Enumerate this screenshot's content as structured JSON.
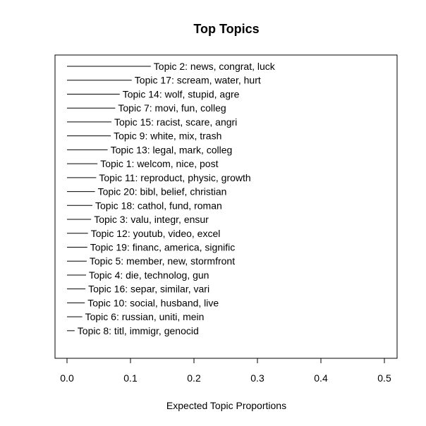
{
  "chart_data": {
    "type": "bar",
    "title": "Top Topics",
    "xlabel": "Expected Topic Proportions",
    "ylabel": "",
    "xlim": [
      0.0,
      0.5
    ],
    "x_ticks": [
      "0.0",
      "0.1",
      "0.2",
      "0.3",
      "0.4",
      "0.5"
    ],
    "grid": false,
    "orientation": "horizontal",
    "categories": [
      "Topic 2: news, congrat, luck",
      "Topic 17: scream, water, hurt",
      "Topic 14: wolf, stupid, agre",
      "Topic 7: movi, fun, colleg",
      "Topic 15: racist, scare, angri",
      "Topic 9: white, mix, trash",
      "Topic 13: legal, mark, colleg",
      "Topic 1: welcom, nice, post",
      "Topic 11: reproduct, physic, growth",
      "Topic 20: bibl, belief, christian",
      "Topic 18: cathol, fund, roman",
      "Topic 3: valu, integr, ensur",
      "Topic 12: youtub, video, excel",
      "Topic 19: financ, america, signific",
      "Topic 5: member, new, stormfront",
      "Topic 4: die, technolog, gun",
      "Topic 16: separ, similar, vari",
      "Topic 10: social, husband, live",
      "Topic 6: russian, uniti, mein",
      "Topic 8: titl, immigr, genocid"
    ],
    "values": [
      0.132,
      0.102,
      0.083,
      0.076,
      0.07,
      0.069,
      0.064,
      0.048,
      0.046,
      0.044,
      0.04,
      0.038,
      0.033,
      0.032,
      0.031,
      0.03,
      0.029,
      0.028,
      0.024,
      0.012
    ]
  }
}
